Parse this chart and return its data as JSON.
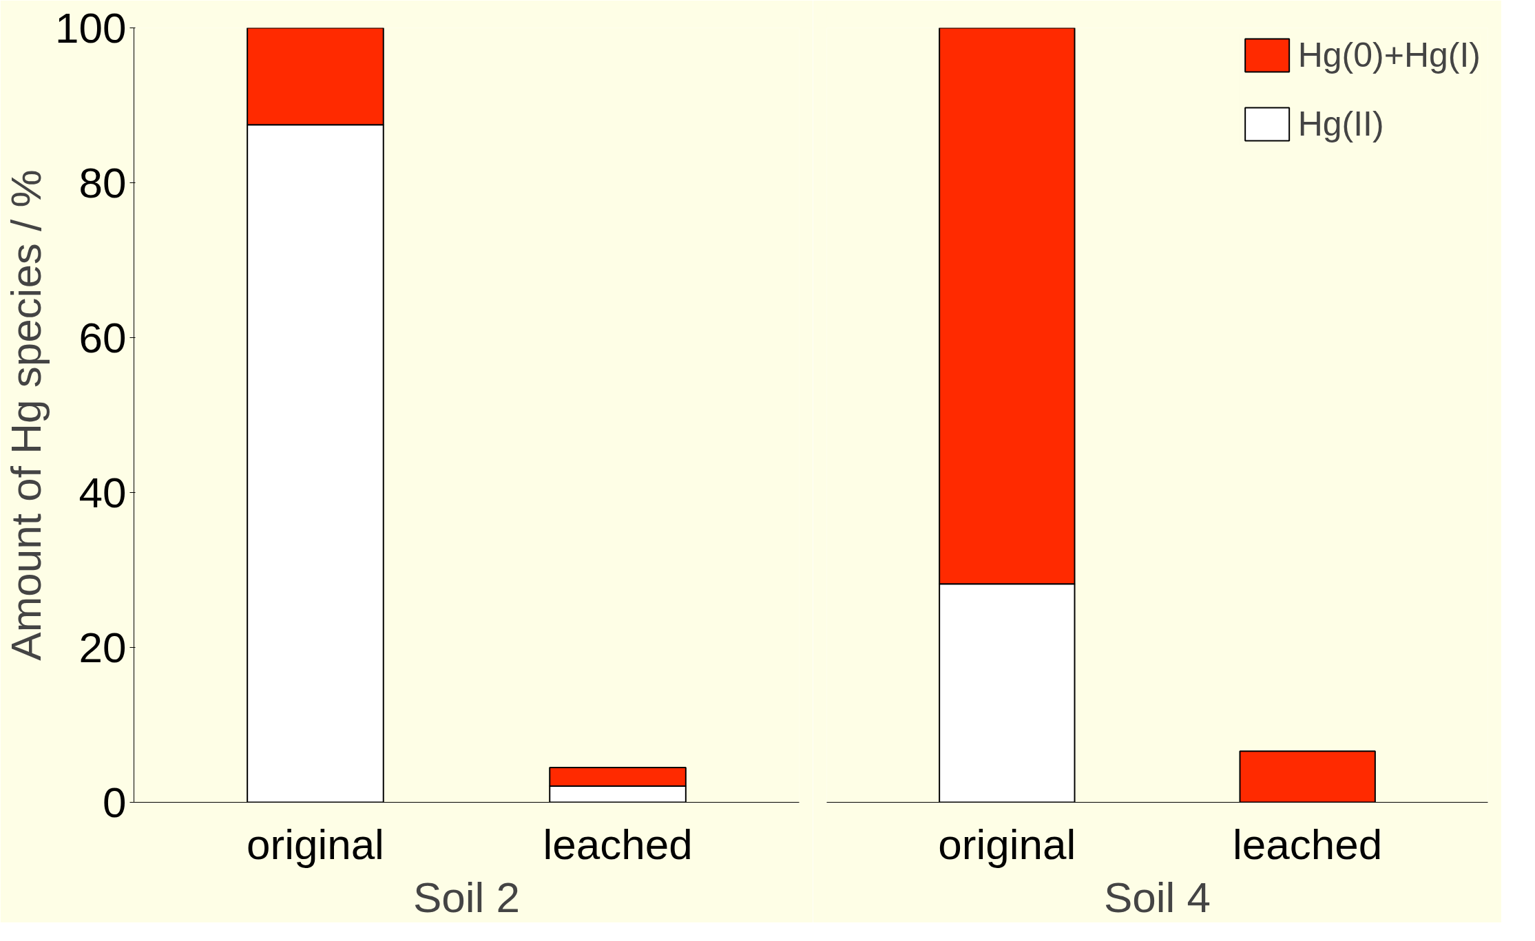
{
  "chart_data": [
    {
      "type": "bar",
      "stacked": true,
      "xlabel": "Soil 2",
      "ylabel": "Amount of Hg species / %",
      "categories": [
        "original",
        "leached"
      ],
      "ylim": [
        0,
        100
      ],
      "yticks": [
        0,
        20,
        40,
        60,
        80,
        100
      ],
      "grid": false,
      "series": [
        {
          "color": "#ffffff",
          "values": [
            87.5,
            2.1
          ]
        },
        {
          "color": "#ff2a00",
          "values": [
            12.5,
            2.4
          ]
        }
      ]
    },
    {
      "type": "bar",
      "stacked": true,
      "xlabel": "Soil 4",
      "categories": [
        "original",
        "leached"
      ],
      "ylim": [
        0,
        100
      ],
      "yticks": [
        0,
        20,
        40,
        60,
        80,
        100
      ],
      "tick_labels": "x",
      "grid": false,
      "legend": "top right",
      "series": [
        {
          "name": "Hg(II)",
          "color": "#ffffff",
          "values": [
            28.2,
            0
          ]
        },
        {
          "name": "Hg(0)+Hg(I)",
          "color": "#ff2a00",
          "values": [
            71.8,
            6.6
          ]
        }
      ]
    }
  ]
}
